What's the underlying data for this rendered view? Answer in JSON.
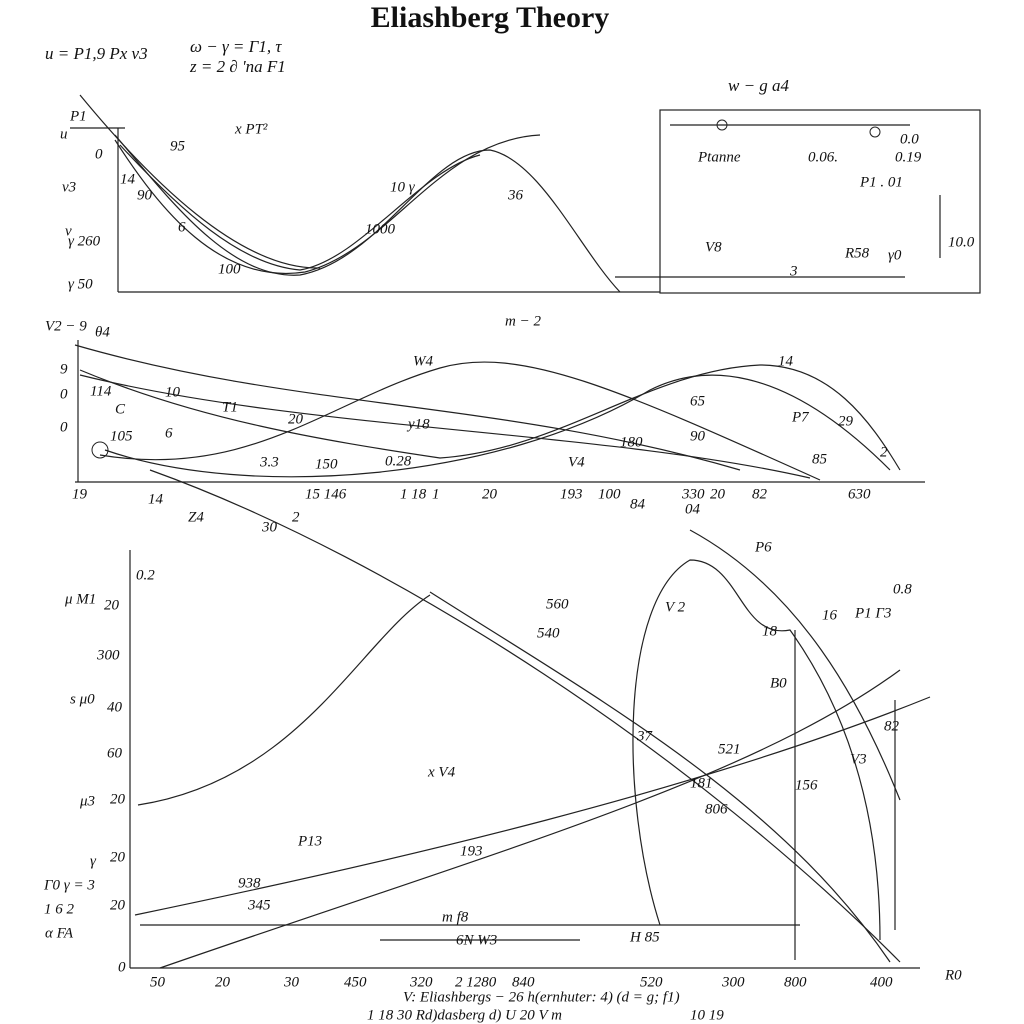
{
  "title": "Eliashberg Theory",
  "header": [
    "u = P1,9 Px v3",
    "ω − γ = Γ1, τ",
    "z = 2 ∂ 'na F1",
    "w − g a4"
  ],
  "panel1": {
    "labels": [
      "P1",
      "u",
      "0",
      "v3",
      "v",
      "γ 260",
      "γ 50",
      "95",
      "x PT²",
      "14",
      "90",
      "6",
      "100",
      "10 γ",
      "1000",
      "36"
    ]
  },
  "inset": {
    "labels": [
      "Ptanne",
      "0.06.",
      "0.0",
      "0.19",
      "P1 . 01",
      "10.0",
      "R58",
      "γ0",
      "3",
      "V8"
    ]
  },
  "panel2": {
    "labels": [
      "m − 2",
      "V2 − 9",
      "θ4",
      "9",
      "0",
      "0",
      "114",
      "10",
      "T1",
      "C",
      "105",
      "6",
      "20",
      "y18",
      "3.3",
      "150",
      "0.28",
      "W4",
      "V4",
      "14",
      "65",
      "P7",
      "29",
      "180",
      "90",
      "85",
      "2"
    ],
    "x_axis": [
      "19",
      "14",
      "15 146",
      "1 18",
      "1",
      "20",
      "193",
      "100",
      "330",
      "82",
      "20",
      "630",
      "30",
      "2",
      "Z4",
      "84",
      "04"
    ]
  },
  "panel3": {
    "y_axis": [
      "0.2",
      "20",
      "300",
      "40",
      "60",
      "20",
      "20",
      "20",
      "0"
    ],
    "labels": [
      "μ M1",
      "s μ0",
      "μ3",
      "γ",
      "Γ0 γ = 3",
      "1 6 2",
      "α FA",
      "560",
      "540",
      "x V4",
      "37",
      "521",
      "181",
      "806",
      "156",
      "193",
      "P13",
      "938",
      "345",
      "m f8",
      "6N W3",
      "H 85",
      "V 2",
      "P6",
      "16",
      "18",
      "0.8",
      "P1 Γ3",
      "B0",
      "82",
      "V3"
    ],
    "x_axis": [
      "50",
      "20",
      "30",
      "450",
      "320",
      "2 1280",
      "840",
      "520",
      "300",
      "800",
      "400",
      "R0"
    ]
  },
  "footer": [
    "V: Eliashbergs − 26 h(ernhuter: 4) (d = g; f1)",
    "1 18 30 Rd)dasberg d) U 20 V m",
    "10 19"
  ]
}
